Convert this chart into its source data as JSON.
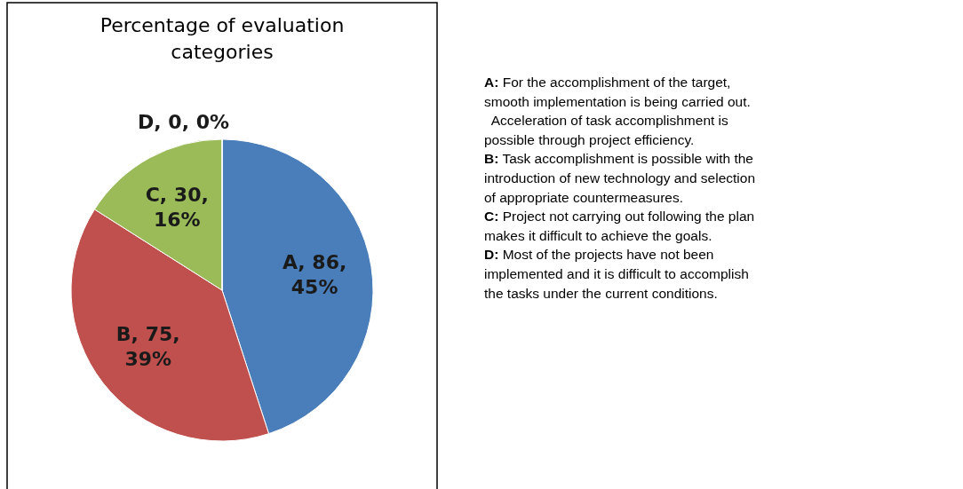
{
  "chart_data": {
    "type": "pie",
    "title": "Percentage of evaluation\ncategories",
    "categories": [
      "A, 86, 45%",
      "B, 75, 39%",
      "C, 30, 16%",
      "D, 0, 0%"
    ],
    "values": [
      45,
      39,
      16,
      0
    ],
    "colors": [
      "#4a7ebb",
      "#c0504d",
      "#9bbb59",
      "#8064a2"
    ],
    "legend": false,
    "annotations": [
      "A: For the accomplishment of the target,\nsmooth implementation is being carried out.\n  Acceleration of task accomplishment is\npossible through project efficiency.",
      "B: Task accomplishment is possible with the\nintroduction of new technology and selection\nof appropriate countermeasures.",
      "C: Project not carrying out following the plan\nmakes it difficult to achieve the goals.",
      "D: Most of the projects have not been\nimplemented and it is difficult to accomplish\nthe tasks under the current conditions."
    ]
  }
}
